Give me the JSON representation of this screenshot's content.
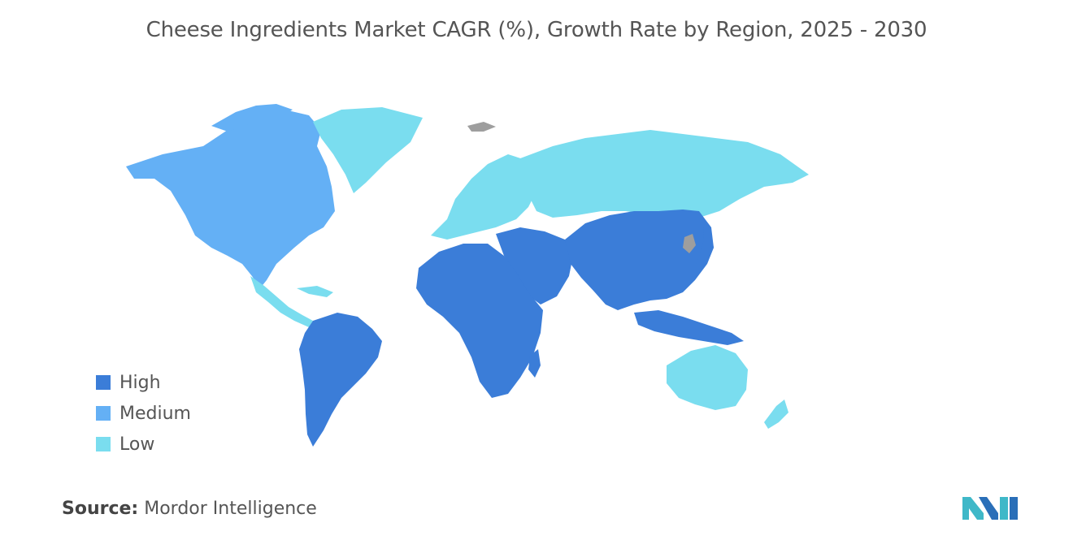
{
  "title": "Cheese Ingredients Market CAGR (%), Growth Rate by Region, 2025 - 2030",
  "legend": [
    {
      "label": "High",
      "color": "#3B7DD8"
    },
    {
      "label": "Medium",
      "color": "#64B0F5"
    },
    {
      "label": "Low",
      "color": "#7ADDEF"
    }
  ],
  "colors": {
    "high": "#3B7DD8",
    "medium": "#64B0F5",
    "low": "#7ADDEF",
    "no_data": "#9E9E9E"
  },
  "source": {
    "label": "Source:",
    "text": "Mordor Intelligence"
  },
  "logo_icon": "mordor-intelligence-logo"
}
